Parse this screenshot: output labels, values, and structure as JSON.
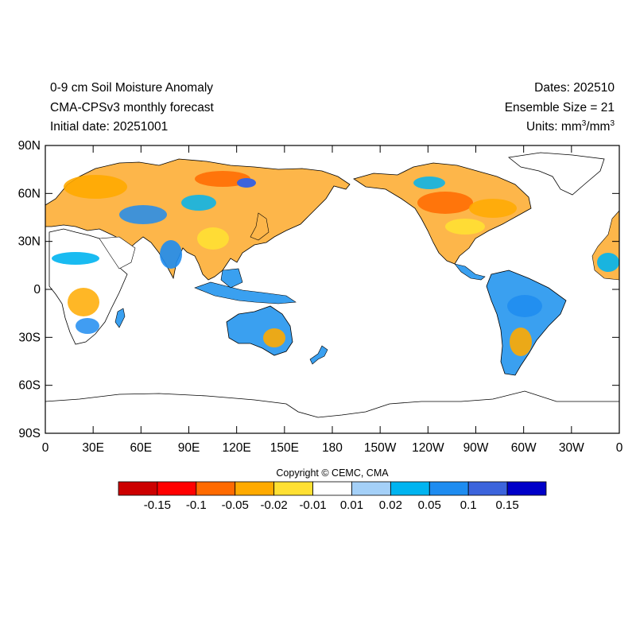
{
  "header": {
    "title": "0-9 cm Soil Moisture Anomaly",
    "model": "CMA-CPSv3 monthly forecast",
    "initial_date": "Initial date: 20251001",
    "dates": "Dates: 202510",
    "ensemble": "Ensemble Size = 21",
    "units_prefix": "Units: mm",
    "units_exp1": "3",
    "units_mid": "/mm",
    "units_exp2": "3"
  },
  "map": {
    "projection": "equirectangular",
    "central_longitude": 180,
    "lat_labels": [
      "90N",
      "60N",
      "30N",
      "0",
      "30S",
      "60S",
      "90S"
    ],
    "lon_labels": [
      "0",
      "30E",
      "60E",
      "90E",
      "120E",
      "150E",
      "180",
      "150W",
      "120W",
      "90W",
      "60W",
      "30W",
      "0"
    ],
    "ocean_color": "#ffffff",
    "coastline_color": "#000000"
  },
  "colorbar": {
    "colors": [
      "#cc0000",
      "#ff0000",
      "#ff6a00",
      "#ffaa00",
      "#ffe033",
      "#ffffff",
      "#a4d0f8",
      "#00b4f0",
      "#1e8cf0",
      "#3c64dc",
      "#0000c8"
    ],
    "labels": [
      "-0.15",
      "-0.1",
      "-0.05",
      "-0.02",
      "-0.01",
      "0.01",
      "0.02",
      "0.05",
      "0.1",
      "0.15"
    ]
  },
  "copyright": "Copyright © CEMC, CMA"
}
